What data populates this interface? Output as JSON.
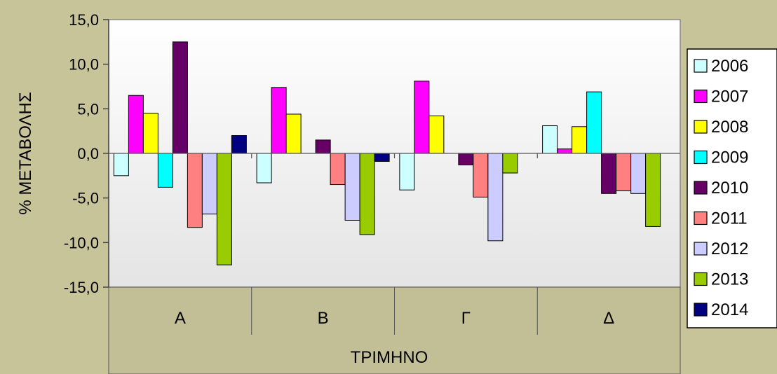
{
  "chart_data": {
    "type": "bar",
    "categories": [
      "Α",
      "Β",
      "Γ",
      "Δ"
    ],
    "series": [
      {
        "name": "2006",
        "color": "#ccffff",
        "values": [
          -2.5,
          -3.3,
          -4.1,
          3.1
        ]
      },
      {
        "name": "2007",
        "color": "#ff00ff",
        "values": [
          6.5,
          7.4,
          8.1,
          0.5
        ]
      },
      {
        "name": "2008",
        "color": "#ffff00",
        "values": [
          4.5,
          4.4,
          4.2,
          3.0
        ]
      },
      {
        "name": "2009",
        "color": "#00ffff",
        "values": [
          -3.8,
          null,
          null,
          6.9
        ]
      },
      {
        "name": "2010",
        "color": "#660066",
        "values": [
          12.5,
          1.5,
          -1.3,
          -4.5
        ]
      },
      {
        "name": "2011",
        "color": "#ff8080",
        "values": [
          -8.3,
          -3.5,
          -4.9,
          -4.2
        ]
      },
      {
        "name": "2012",
        "color": "#ccccff",
        "values": [
          -6.8,
          -7.5,
          -9.8,
          -4.5
        ]
      },
      {
        "name": "2013",
        "color": "#99cc00",
        "values": [
          -12.5,
          -9.1,
          -2.2,
          -8.2
        ]
      },
      {
        "name": "2014",
        "color": "#000080",
        "values": [
          2.0,
          -0.9,
          null,
          null
        ]
      }
    ],
    "title": "",
    "xlabel": "ΤΡΙΜΗΝΟ",
    "ylabel": "% ΜΕΤΑΒΟΛΗΣ",
    "ylim": [
      -15,
      15
    ],
    "yticks": [
      15,
      10,
      5,
      0,
      -5,
      -10,
      -15
    ],
    "ytick_labels": [
      "15,0",
      "10,0",
      "5,0",
      "0,0",
      "-5,0",
      "-10,0",
      "-15,0"
    ],
    "grid": false,
    "legend": "right"
  }
}
